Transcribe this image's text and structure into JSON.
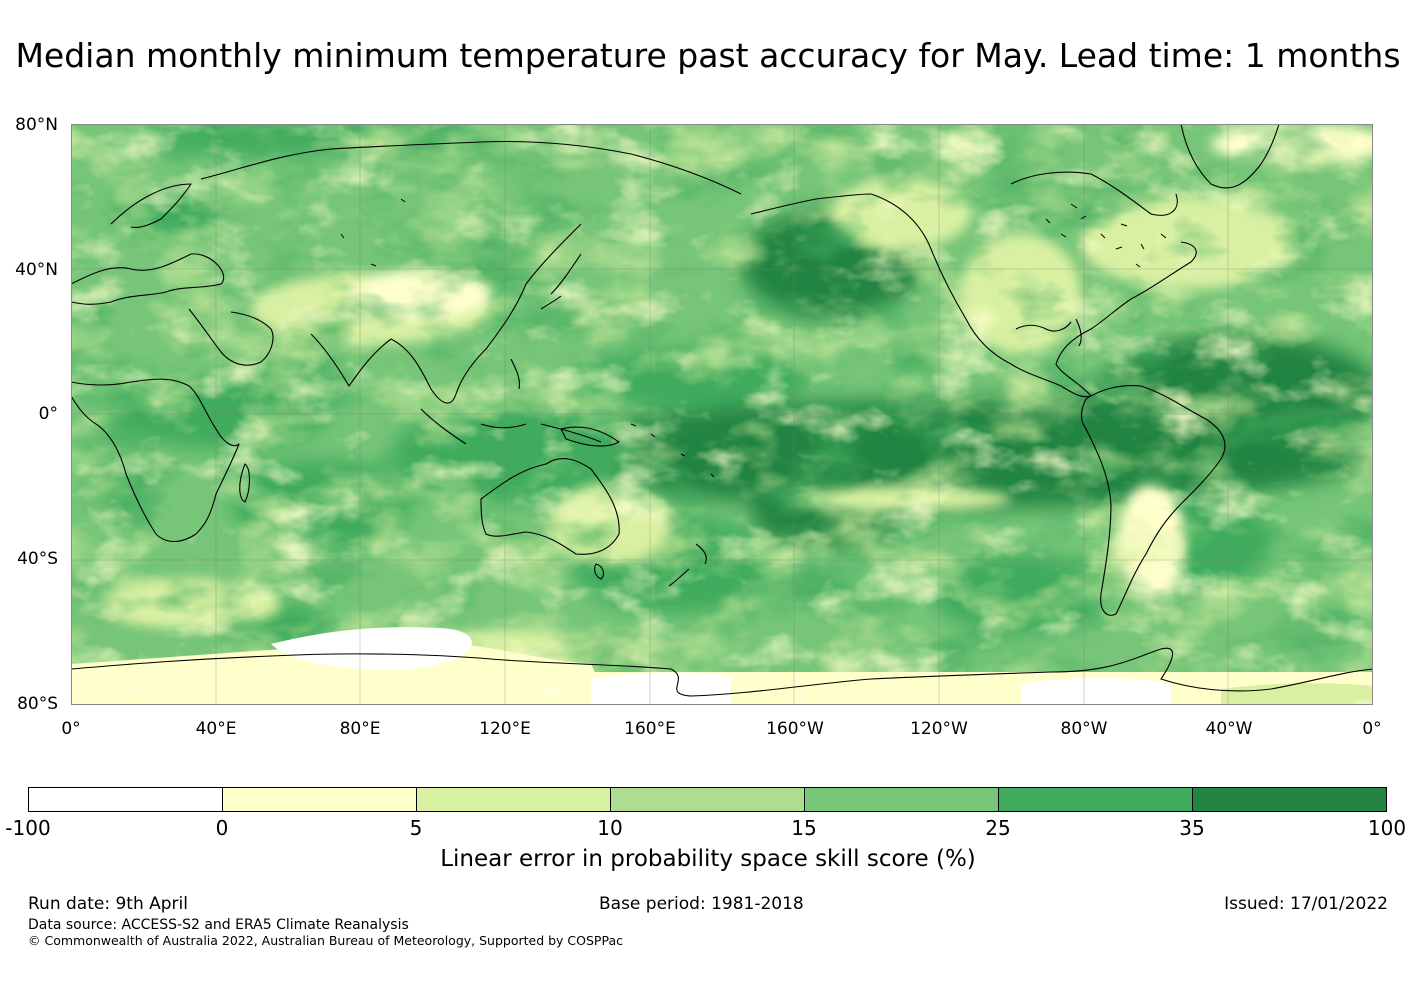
{
  "title": "Median monthly minimum temperature past accuracy for May. Lead time: 1 months",
  "map": {
    "projection": "equirectangular",
    "lat_labels": [
      "80°N",
      "40°N",
      "0°",
      "40°S",
      "80°S"
    ],
    "lon_labels": [
      "0°",
      "40°E",
      "80°E",
      "120°E",
      "160°E",
      "160°W",
      "120°W",
      "80°W",
      "40°W",
      "0°"
    ],
    "ocean_base_color": "#74c476"
  },
  "colorbar": {
    "tick_labels": [
      "-100",
      "0",
      "5",
      "10",
      "15",
      "25",
      "35",
      "100"
    ],
    "colors": [
      "#ffffff",
      "#ffffcc",
      "#d9f0a3",
      "#addd8e",
      "#78c679",
      "#41ab5d",
      "#238443"
    ],
    "label": "Linear error in probability space skill score (%)"
  },
  "footer": {
    "run_date": "Run date: 9th April",
    "base_period": "Base period: 1981-2018",
    "issued": "Issued: 17/01/2022",
    "data_source": "Data source: ACCESS-S2 and ERA5 Climate Reanalysis",
    "copyright": "© Commonwealth of Australia 2022, Australian Bureau of Meteorology, Supported by COSPPac"
  }
}
